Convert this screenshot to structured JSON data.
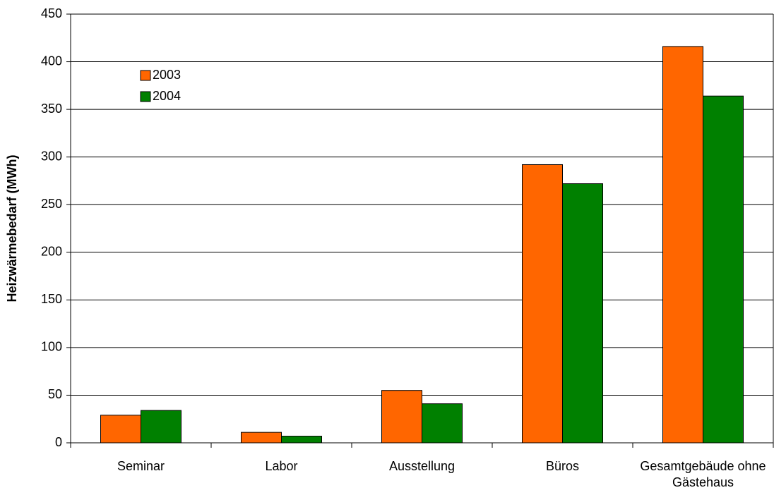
{
  "chart_data": {
    "type": "bar",
    "y_label": "Heizwärmebedarf (MWh)",
    "categories": [
      "Seminar",
      "Labor",
      "Ausstellung",
      "Büros",
      "Gesamtgebäude ohne Gästehaus"
    ],
    "series": [
      {
        "name": "2003",
        "color": "#ff6600",
        "values": [
          29,
          11,
          55,
          292,
          416
        ]
      },
      {
        "name": "2004",
        "color": "#008000",
        "values": [
          34,
          7,
          41,
          272,
          364
        ]
      }
    ],
    "ylim": [
      0,
      450
    ],
    "yticks": [
      0,
      50,
      100,
      150,
      200,
      250,
      300,
      350,
      400,
      450
    ],
    "grid": true,
    "legend": "upper left"
  }
}
